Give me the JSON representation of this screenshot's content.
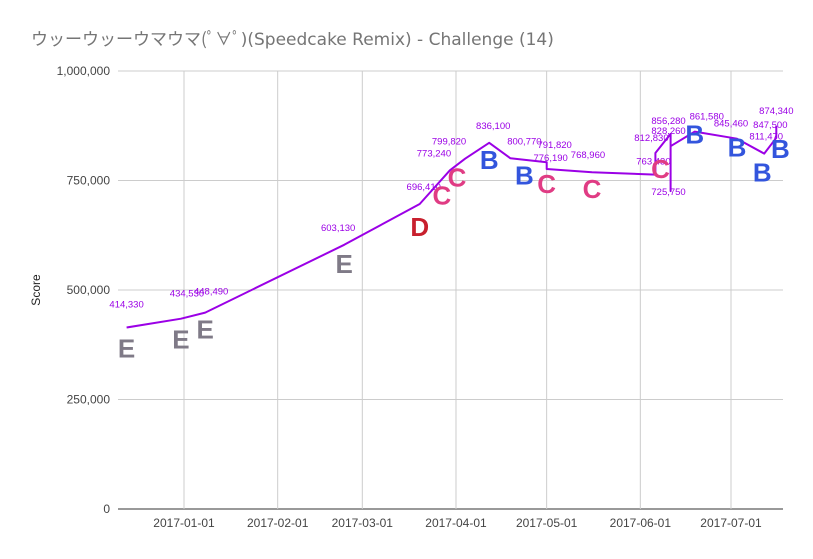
{
  "chart_data": {
    "type": "line",
    "title": "ウッーウッーウマウマ(ﾟ∀ﾟ)(Speedcake Remix) - Challenge (14)",
    "xlabel": "",
    "ylabel": "Score",
    "ylim": [
      0,
      1000000
    ],
    "yticks": [
      "0",
      "250,000",
      "500,000",
      "750,000",
      "1,000,000"
    ],
    "xticks": [
      "2017-01-01",
      "2017-02-01",
      "2017-03-01",
      "2017-04-01",
      "2017-05-01",
      "2017-06-01",
      "2017-07-01"
    ],
    "grid": true,
    "line_color": "#9b00e6",
    "series": [
      {
        "points": [
          {
            "x": "2016-12-13",
            "y": 414330,
            "label": "414,330",
            "grade": "E"
          },
          {
            "x": "2016-12-31",
            "y": 434530,
            "label": "434,530",
            "grade": "E"
          },
          {
            "x": "2017-01-08",
            "y": 448490,
            "label": "448,490",
            "grade": "E"
          },
          {
            "x": "2017-02-23",
            "y": 603130,
            "label": "603,130",
            "grade": "E"
          },
          {
            "x": "2017-03-20",
            "y": 696410,
            "label": "696,410",
            "grade": "D"
          },
          {
            "x": "2017-03-30",
            "y": 773240,
            "label": "773,240",
            "grade": "C"
          },
          {
            "x": "2017-04-04",
            "y": 799820,
            "label": "799,820",
            "grade": "C"
          },
          {
            "x": "2017-04-12",
            "y": 836100,
            "label": "836,100",
            "grade": "B"
          },
          {
            "x": "2017-04-19",
            "y": 800770,
            "label": "800,770",
            "grade": "B"
          },
          {
            "x": "2017-05-01",
            "y": 791820,
            "label": "791,820",
            "grade": null
          },
          {
            "x": "2017-05-01",
            "y": 776190,
            "label": "776,190",
            "grade": "C"
          },
          {
            "x": "2017-05-16",
            "y": 768960,
            "label": "768,960",
            "grade": "C"
          },
          {
            "x": "2017-06-06",
            "y": 763430,
            "label": "763,430",
            "grade": null
          },
          {
            "x": "2017-06-06",
            "y": 812830,
            "label": "812,830",
            "grade": null
          },
          {
            "x": "2017-06-11",
            "y": 856280,
            "label": "856,280",
            "grade": "C"
          },
          {
            "x": "2017-06-11",
            "y": 725750,
            "label": "725,750",
            "grade": null
          },
          {
            "x": "2017-06-11",
            "y": 828260,
            "label": "828,260",
            "grade": null
          },
          {
            "x": "2017-06-19",
            "y": 861580,
            "label": "861,580",
            "grade": "B"
          },
          {
            "x": "2017-07-03",
            "y": 845460,
            "label": "845,460",
            "grade": "B"
          },
          {
            "x": "2017-07-12",
            "y": 811470,
            "label": "811,470",
            "grade": "B"
          },
          {
            "x": "2017-07-16",
            "y": 847500,
            "label": "847,500",
            "grade": null
          },
          {
            "x": "2017-07-16",
            "y": 874340,
            "label": "874,340",
            "grade": "B"
          }
        ]
      }
    ],
    "grade_colors": {
      "E": "#7f7a87",
      "D": "#c8202e",
      "C": "#e03c84",
      "B": "#3355dd"
    }
  }
}
